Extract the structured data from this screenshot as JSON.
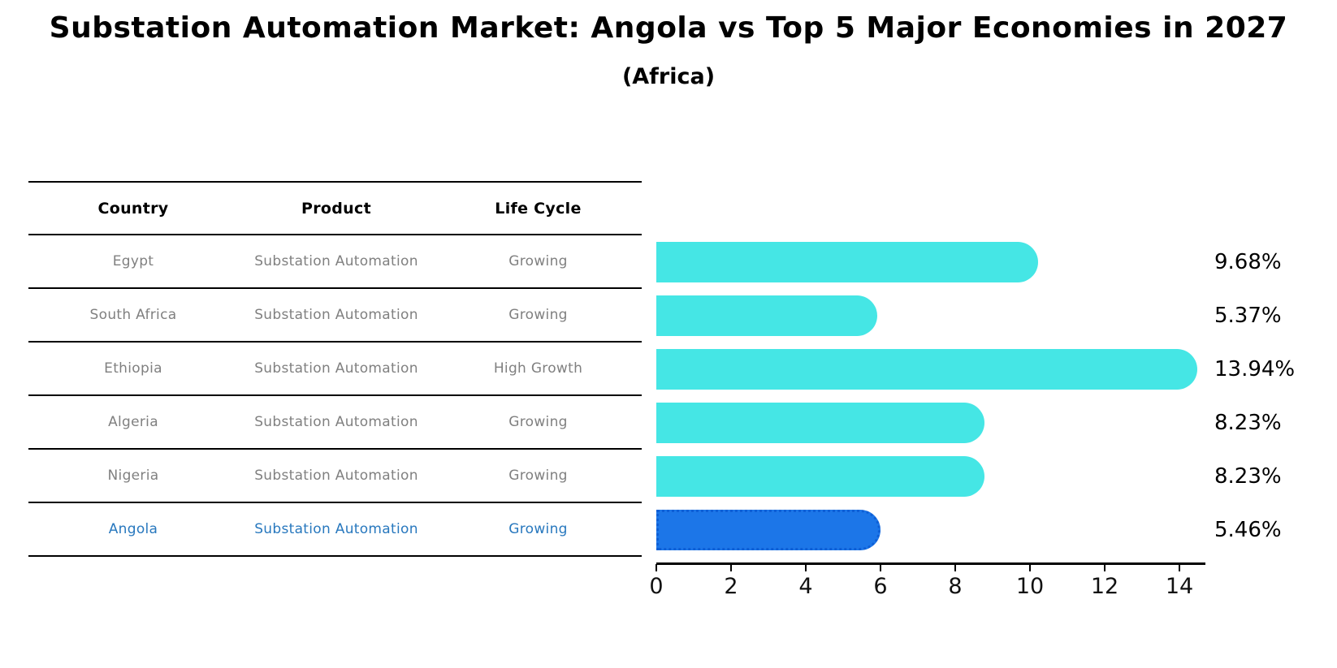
{
  "title": "Substation Automation Market: Angola vs Top 5 Major Economies in 2027",
  "subtitle": "(Africa)",
  "table": {
    "headers": [
      "Country",
      "Product",
      "Life Cycle"
    ],
    "rows": [
      {
        "country": "Egypt",
        "product": "Substation Automation",
        "life_cycle": "Growing",
        "highlighted": false
      },
      {
        "country": "South Africa",
        "product": "Substation Automation",
        "life_cycle": "Growing",
        "highlighted": false
      },
      {
        "country": "Ethiopia",
        "product": "Substation Automation",
        "life_cycle": "High Growth",
        "highlighted": false
      },
      {
        "country": "Algeria",
        "product": "Substation Automation",
        "life_cycle": "Growing",
        "highlighted": false
      },
      {
        "country": "Nigeria",
        "product": "Substation Automation",
        "life_cycle": "Growing",
        "highlighted": false
      },
      {
        "country": "Angola",
        "product": "Substation Automation",
        "life_cycle": "Growing",
        "highlighted": true
      }
    ]
  },
  "chart_data": {
    "type": "bar",
    "orientation": "horizontal",
    "title": "Substation Automation Market: Angola vs Top 5 Major Economies in 2027",
    "subtitle": "(Africa)",
    "categories": [
      "Egypt",
      "South Africa",
      "Ethiopia",
      "Algeria",
      "Nigeria",
      "Angola"
    ],
    "values": [
      9.68,
      5.37,
      13.94,
      8.23,
      8.23,
      5.46
    ],
    "labels": [
      "9.68%",
      "5.37%",
      "13.94%",
      "8.23%",
      "8.23%",
      "5.46%"
    ],
    "x_ticks": [
      0,
      2,
      4,
      6,
      8,
      10,
      12,
      14
    ],
    "xlim": [
      0,
      14.6
    ],
    "grid": false,
    "legend": "none",
    "highlight_index": 5
  },
  "colors": {
    "bar": "#45e6e5",
    "highlight_bar": "#1c76e8",
    "highlight_border": "#0e5fd6",
    "row_text": "#808080",
    "highlight_text": "#2878be",
    "axis": "#000000"
  }
}
